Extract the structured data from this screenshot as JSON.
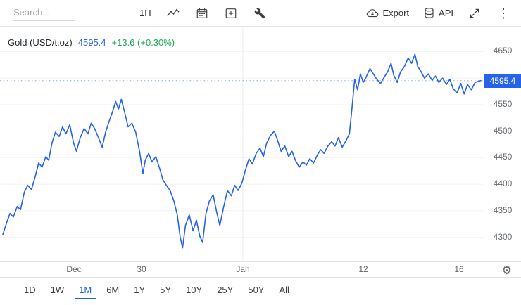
{
  "toolbar": {
    "search_placeholder": "Search...",
    "interval": "1H",
    "export_label": "Export",
    "api_label": "API"
  },
  "header": {
    "instrument": "Gold (USD/t.oz)",
    "price": "4595.4",
    "change": "+13.6 (+0.30%)"
  },
  "axis": {
    "price_badge": "4595.4"
  },
  "range_selector": {
    "options": [
      "1D",
      "1W",
      "1M",
      "6M",
      "1Y",
      "5Y",
      "10Y",
      "25Y",
      "50Y",
      "All"
    ],
    "active": "1M"
  },
  "colors": {
    "line": "#2563eb",
    "badge_bg": "#2563eb",
    "price_text": "#2563eb",
    "change_text": "#1ea85a"
  },
  "chart_data": {
    "type": "line",
    "title": "Gold (USD/t.oz)",
    "interval": "1H",
    "range": "1M",
    "current_price": 4595.4,
    "change": 13.6,
    "change_pct": 0.3,
    "line_color": "#2563eb",
    "ylim": [
      4253,
      4697
    ],
    "yticks": [
      4300,
      4350,
      4400,
      4450,
      4500,
      4550,
      4600,
      4650
    ],
    "xticks": [
      {
        "label": "Dec",
        "pos": 0.152
      },
      {
        "label": "30",
        "pos": 0.292
      },
      {
        "label": "Jan",
        "pos": 0.502,
        "gridline": true
      },
      {
        "label": "12",
        "pos": 0.75
      },
      {
        "label": "16",
        "pos": 0.948
      }
    ],
    "points": [
      [
        0,
        4305
      ],
      [
        0.7,
        4325
      ],
      [
        1.5,
        4345
      ],
      [
        2.2,
        4338
      ],
      [
        3,
        4358
      ],
      [
        3.7,
        4352
      ],
      [
        4.5,
        4385
      ],
      [
        5.2,
        4398
      ],
      [
        6,
        4390
      ],
      [
        6.8,
        4415
      ],
      [
        7.5,
        4440
      ],
      [
        8.2,
        4432
      ],
      [
        9,
        4452
      ],
      [
        9.6,
        4445
      ],
      [
        10.3,
        4478
      ],
      [
        11,
        4498
      ],
      [
        11.8,
        4490
      ],
      [
        12.5,
        4508
      ],
      [
        13.2,
        4495
      ],
      [
        14,
        4512
      ],
      [
        14.8,
        4478
      ],
      [
        15.4,
        4462
      ],
      [
        16.2,
        4488
      ],
      [
        17,
        4505
      ],
      [
        17.8,
        4495
      ],
      [
        18.5,
        4515
      ],
      [
        19.2,
        4505
      ],
      [
        20,
        4488
      ],
      [
        20.8,
        4470
      ],
      [
        21.5,
        4498
      ],
      [
        22.3,
        4520
      ],
      [
        23,
        4538
      ],
      [
        23.6,
        4556
      ],
      [
        24.2,
        4542
      ],
      [
        24.8,
        4560
      ],
      [
        25.5,
        4535
      ],
      [
        26.2,
        4508
      ],
      [
        27,
        4515
      ],
      [
        27.8,
        4498
      ],
      [
        28.6,
        4462
      ],
      [
        29.3,
        4420
      ],
      [
        29.8,
        4445
      ],
      [
        30.5,
        4458
      ],
      [
        31.2,
        4442
      ],
      [
        32,
        4452
      ],
      [
        32.8,
        4430
      ],
      [
        33.5,
        4408
      ],
      [
        34.2,
        4398
      ],
      [
        35,
        4388
      ],
      [
        35.8,
        4368
      ],
      [
        36.5,
        4342
      ],
      [
        37.1,
        4300
      ],
      [
        37.6,
        4280
      ],
      [
        38.2,
        4322
      ],
      [
        39,
        4342
      ],
      [
        39.8,
        4312
      ],
      [
        40.5,
        4332
      ],
      [
        41.2,
        4302
      ],
      [
        41.8,
        4290
      ],
      [
        42.5,
        4345
      ],
      [
        43.2,
        4368
      ],
      [
        44,
        4380
      ],
      [
        44.8,
        4345
      ],
      [
        45.4,
        4322
      ],
      [
        46.2,
        4358
      ],
      [
        47,
        4388
      ],
      [
        47.8,
        4378
      ],
      [
        48.5,
        4398
      ],
      [
        49.2,
        4388
      ],
      [
        50,
        4402
      ],
      [
        50.8,
        4428
      ],
      [
        51.5,
        4448
      ],
      [
        52.2,
        4438
      ],
      [
        53,
        4458
      ],
      [
        53.8,
        4468
      ],
      [
        54.5,
        4452
      ],
      [
        55.2,
        4478
      ],
      [
        56,
        4492
      ],
      [
        56.8,
        4500
      ],
      [
        57.5,
        4482
      ],
      [
        58.2,
        4462
      ],
      [
        59,
        4472
      ],
      [
        59.8,
        4452
      ],
      [
        60.5,
        4462
      ],
      [
        61.2,
        4445
      ],
      [
        62,
        4432
      ],
      [
        62.8,
        4442
      ],
      [
        63.5,
        4436
      ],
      [
        64.2,
        4448
      ],
      [
        65,
        4440
      ],
      [
        65.8,
        4455
      ],
      [
        66.5,
        4465
      ],
      [
        67.2,
        4458
      ],
      [
        68,
        4472
      ],
      [
        68.8,
        4480
      ],
      [
        69.5,
        4472
      ],
      [
        70.2,
        4488
      ],
      [
        71,
        4470
      ],
      [
        71.8,
        4482
      ],
      [
        72.5,
        4495
      ],
      [
        73,
        4540
      ],
      [
        73.6,
        4598
      ],
      [
        74.2,
        4578
      ],
      [
        74.8,
        4608
      ],
      [
        75.4,
        4592
      ],
      [
        76,
        4602
      ],
      [
        76.8,
        4618
      ],
      [
        77.5,
        4608
      ],
      [
        78.2,
        4598
      ],
      [
        79,
        4590
      ],
      [
        79.8,
        4602
      ],
      [
        80.5,
        4612
      ],
      [
        81.2,
        4628
      ],
      [
        81.8,
        4605
      ],
      [
        82.5,
        4592
      ],
      [
        83.2,
        4612
      ],
      [
        84,
        4622
      ],
      [
        84.8,
        4638
      ],
      [
        85.5,
        4628
      ],
      [
        86.2,
        4645
      ],
      [
        86.8,
        4622
      ],
      [
        87.5,
        4612
      ],
      [
        88.2,
        4600
      ],
      [
        89,
        4608
      ],
      [
        89.8,
        4596
      ],
      [
        90.5,
        4604
      ],
      [
        91.2,
        4592
      ],
      [
        92,
        4600
      ],
      [
        92.8,
        4588
      ],
      [
        93.5,
        4598
      ],
      [
        94.2,
        4580
      ],
      [
        95,
        4572
      ],
      [
        95.8,
        4590
      ],
      [
        96.5,
        4570
      ],
      [
        97.2,
        4588
      ],
      [
        98,
        4578
      ],
      [
        98.8,
        4592
      ],
      [
        100,
        4595.4
      ]
    ]
  }
}
